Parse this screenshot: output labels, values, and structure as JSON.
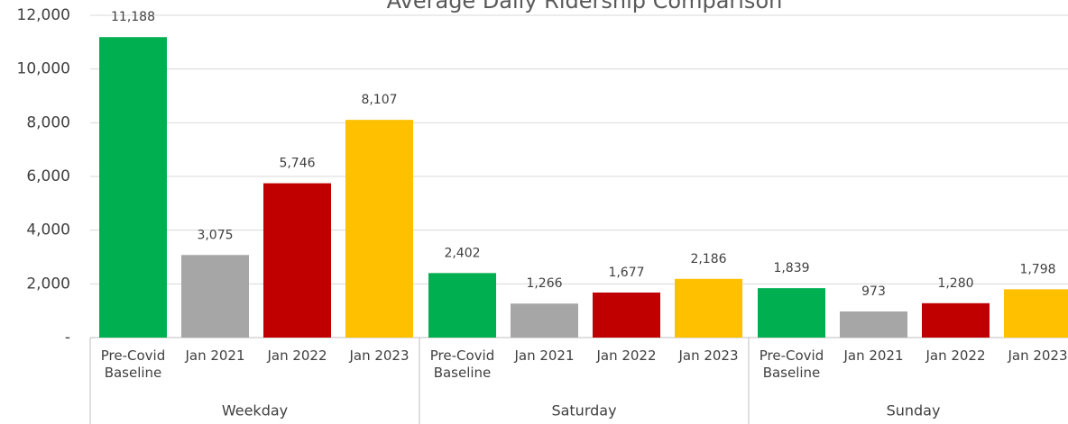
{
  "chart_data": {
    "type": "bar",
    "title": "Average Daily Ridership Comparison",
    "categories": [
      "Weekday",
      "Saturday",
      "Sunday"
    ],
    "series": [
      {
        "name": "Pre-Covid Baseline",
        "color": "#00b050",
        "values": [
          11188,
          2402,
          1839
        ],
        "value_labels": [
          "11,188",
          "2,402",
          "1,839"
        ]
      },
      {
        "name": "Jan 2021",
        "color": "#a6a6a6",
        "values": [
          3075,
          1266,
          973
        ],
        "value_labels": [
          "3,075",
          "1,266",
          "973"
        ]
      },
      {
        "name": "Jan 2022",
        "color": "#c00000",
        "values": [
          5746,
          1677,
          1280
        ],
        "value_labels": [
          "5,746",
          "1,677",
          "1,280"
        ]
      },
      {
        "name": "Jan 2023",
        "color": "#ffc000",
        "values": [
          8107,
          2186,
          1798
        ],
        "value_labels": [
          "8,107",
          "2,186",
          "1,798"
        ]
      }
    ],
    "ylim": [
      0,
      12000
    ],
    "yticks": [
      {
        "value": 0,
        "label": "-"
      },
      {
        "value": 2000,
        "label": "2,000"
      },
      {
        "value": 4000,
        "label": "4,000"
      },
      {
        "value": 6000,
        "label": "6,000"
      },
      {
        "value": 8000,
        "label": "8,000"
      },
      {
        "value": 10000,
        "label": "10,000"
      },
      {
        "value": 12000,
        "label": "12,000"
      }
    ],
    "grid": true
  }
}
